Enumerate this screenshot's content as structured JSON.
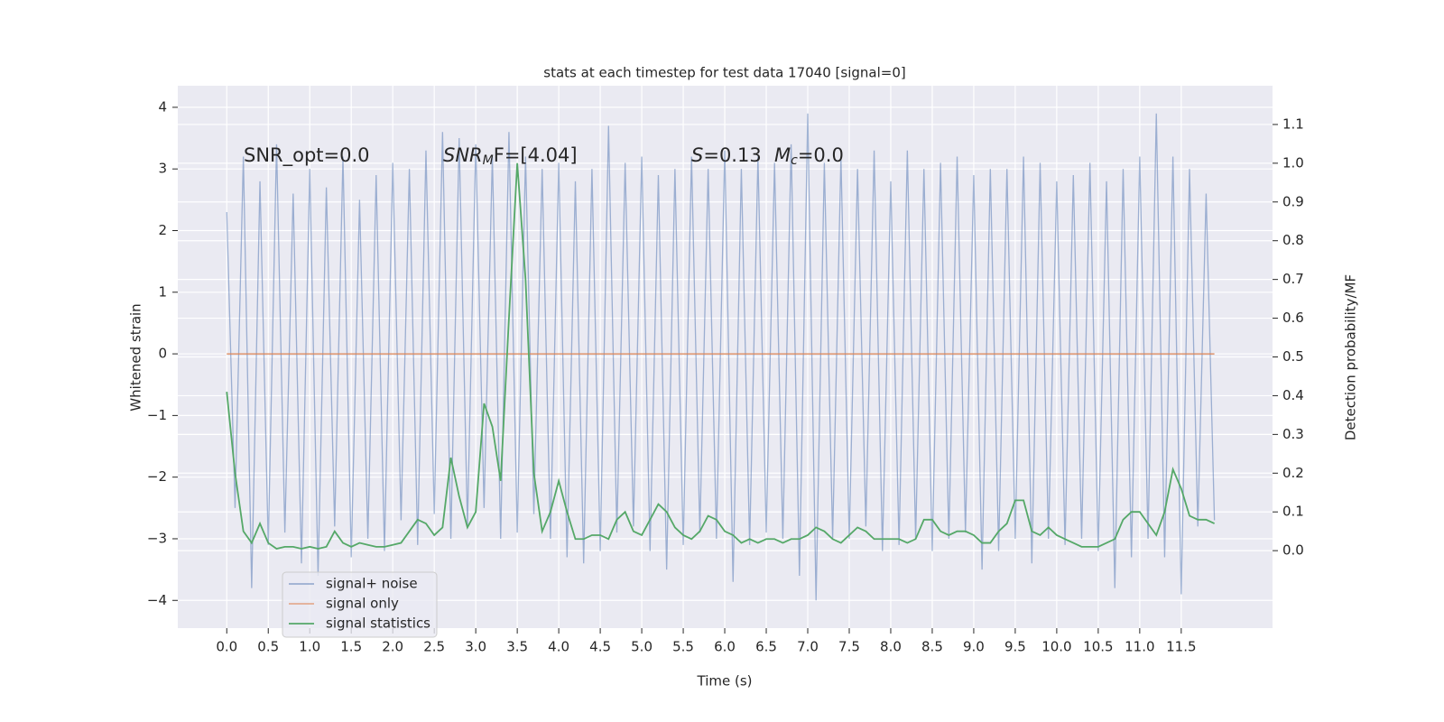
{
  "chart_data": {
    "type": "line",
    "title": "stats at each timestep for test data 17040 [signal=0]",
    "x_label": "Time (s)",
    "y_label": "Whitened strain",
    "y2_label": "Detection probability/MF",
    "annotations": [
      [
        "SNR_opt=0.0"
      ],
      [
        "SNR",
        "M",
        "F=[4.04]"
      ],
      [
        "S",
        "=0.13"
      ],
      [
        "M",
        "c",
        "=0.0"
      ]
    ],
    "legend": "lower left",
    "grid": true,
    "xlim": [
      -0.59,
      12.6
    ],
    "ylim": [
      -4.45,
      4.35
    ],
    "y2lim": [
      -0.2,
      1.2
    ],
    "xticks": [
      {
        "value": 0,
        "label": "0.0"
      },
      0.5,
      {
        "value": 1,
        "label": "1.0"
      },
      1.5,
      {
        "value": 2,
        "label": "2.0"
      },
      2.5,
      {
        "value": 3,
        "label": "3.0"
      },
      3.5,
      {
        "value": 4,
        "label": "4.0"
      },
      4.5,
      {
        "value": 5,
        "label": "5.0"
      },
      5.5,
      {
        "value": 6,
        "label": "6.0"
      },
      6.5,
      {
        "value": 7,
        "label": "7.0"
      },
      7.5,
      {
        "value": 8,
        "label": "8.0"
      },
      8.5,
      {
        "value": 9,
        "label": "9.0"
      },
      9.5,
      {
        "value": 10,
        "label": "10.0"
      },
      10.5,
      {
        "value": 11,
        "label": "11.0"
      },
      11.5
    ],
    "yticks": [
      {
        "value": -4,
        "label": "−4"
      },
      {
        "value": -3,
        "label": "−3"
      },
      {
        "value": -2,
        "label": "−2"
      },
      {
        "value": -1,
        "label": "−1"
      },
      0,
      1,
      2,
      3,
      4
    ],
    "y2ticks": [
      {
        "value": 0,
        "label": "0.0"
      },
      0.1,
      0.2,
      0.3,
      0.4,
      0.5,
      0.6,
      0.7,
      0.8,
      0.9,
      {
        "value": 1,
        "label": "1.0"
      },
      1.1
    ],
    "x": [
      0,
      0.1,
      0.2,
      0.3,
      0.4,
      0.5,
      0.6,
      0.7,
      0.8,
      0.9,
      1,
      1.1,
      1.2,
      1.3,
      1.4,
      1.5,
      1.6,
      1.7,
      1.8,
      1.9,
      2,
      2.1,
      2.2,
      2.3,
      2.4,
      2.5,
      2.6,
      2.7,
      2.8,
      2.9,
      3,
      3.1,
      3.2,
      3.3,
      3.4,
      3.5,
      3.6,
      3.7,
      3.8,
      3.9,
      4,
      4.1,
      4.2,
      4.3,
      4.4,
      4.5,
      4.6,
      4.7,
      4.8,
      4.9,
      5,
      5.1,
      5.2,
      5.3,
      5.4,
      5.5,
      5.6,
      5.7,
      5.8,
      5.9,
      6,
      6.1,
      6.2,
      6.3,
      6.4,
      6.5,
      6.6,
      6.7,
      6.8,
      6.9,
      7,
      7.1,
      7.2,
      7.3,
      7.4,
      7.5,
      7.6,
      7.7,
      7.8,
      7.9,
      8,
      8.1,
      8.2,
      8.3,
      8.4,
      8.5,
      8.6,
      8.7,
      8.8,
      8.9,
      9,
      9.1,
      9.2,
      9.3,
      9.4,
      9.5,
      9.6,
      9.7,
      9.8,
      9.9,
      10,
      10.1,
      10.2,
      10.3,
      10.4,
      10.5,
      10.6,
      10.7,
      10.8,
      10.9,
      11,
      11.1,
      11.2,
      11.3,
      11.4,
      11.5,
      11.6,
      11.7,
      11.8,
      11.9
    ],
    "series": [
      {
        "name": "signal+ noise",
        "color": "#4c72b0",
        "axis": "y",
        "values": [
          2.3,
          -2.5,
          3.2,
          -3.8,
          2.8,
          -3.1,
          3.4,
          -2.9,
          2.6,
          -3.4,
          3.0,
          -3.6,
          2.7,
          -2.8,
          3.2,
          -3.3,
          2.5,
          -3.0,
          2.9,
          -3.2,
          3.1,
          -2.7,
          3.0,
          -3.1,
          3.3,
          -2.6,
          3.6,
          -3.0,
          3.5,
          -2.8,
          3.4,
          -2.5,
          3.2,
          -3.0,
          3.6,
          -2.9,
          3.2,
          -2.6,
          3.0,
          -3.0,
          3.1,
          -3.3,
          2.8,
          -3.4,
          3.0,
          -3.2,
          3.7,
          -2.9,
          3.1,
          -2.8,
          3.2,
          -3.2,
          2.9,
          -3.5,
          3.0,
          -3.1,
          3.2,
          -2.9,
          3.0,
          -3.0,
          3.3,
          -3.7,
          3.0,
          -3.1,
          3.2,
          -2.9,
          3.1,
          -3.0,
          3.4,
          -3.6,
          3.9,
          -4.0,
          3.1,
          -3.0,
          3.2,
          -3.0,
          3.0,
          -2.8,
          3.3,
          -3.2,
          2.8,
          -3.1,
          3.3,
          -3.0,
          3.0,
          -3.2,
          3.1,
          -3.0,
          3.2,
          -2.9,
          2.9,
          -3.5,
          3.0,
          -3.2,
          3.0,
          -3.0,
          3.2,
          -3.4,
          3.1,
          -3.0,
          2.8,
          -3.1,
          2.9,
          -3.0,
          3.1,
          -3.2,
          2.8,
          -3.8,
          3.0,
          -3.3,
          3.2,
          -3.0,
          3.9,
          -3.3,
          3.2,
          -3.9,
          3.0,
          -2.8,
          2.6,
          -2.7
        ]
      },
      {
        "name": "signal only",
        "color": "#dd8452",
        "axis": "y",
        "values": [
          0,
          0,
          0,
          0,
          0,
          0,
          0,
          0,
          0,
          0,
          0,
          0,
          0,
          0,
          0,
          0,
          0,
          0,
          0,
          0,
          0,
          0,
          0,
          0,
          0,
          0,
          0,
          0,
          0,
          0,
          0,
          0,
          0,
          0,
          0,
          0,
          0,
          0,
          0,
          0,
          0,
          0,
          0,
          0,
          0,
          0,
          0,
          0,
          0,
          0,
          0,
          0,
          0,
          0,
          0,
          0,
          0,
          0,
          0,
          0,
          0,
          0,
          0,
          0,
          0,
          0,
          0,
          0,
          0,
          0,
          0,
          0,
          0,
          0,
          0,
          0,
          0,
          0,
          0,
          0,
          0,
          0,
          0,
          0,
          0,
          0,
          0,
          0,
          0,
          0,
          0,
          0,
          0,
          0,
          0,
          0,
          0,
          0,
          0,
          0,
          0,
          0,
          0,
          0,
          0,
          0,
          0,
          0,
          0,
          0,
          0,
          0,
          0,
          0,
          0,
          0,
          0,
          0,
          0,
          0
        ]
      },
      {
        "name": "signal statistics",
        "color": "#55a868",
        "axis": "y2",
        "values": [
          0.41,
          0.2,
          0.05,
          0.02,
          0.07,
          0.02,
          0.005,
          0.01,
          0.01,
          0.005,
          0.01,
          0.005,
          0.01,
          0.05,
          0.02,
          0.01,
          0.02,
          0.015,
          0.01,
          0.01,
          0.015,
          0.02,
          0.05,
          0.08,
          0.07,
          0.04,
          0.06,
          0.24,
          0.14,
          0.06,
          0.1,
          0.38,
          0.32,
          0.18,
          0.6,
          1.0,
          0.7,
          0.2,
          0.05,
          0.1,
          0.18,
          0.1,
          0.03,
          0.03,
          0.04,
          0.04,
          0.03,
          0.08,
          0.1,
          0.05,
          0.04,
          0.08,
          0.12,
          0.1,
          0.06,
          0.04,
          0.03,
          0.05,
          0.09,
          0.08,
          0.05,
          0.04,
          0.02,
          0.03,
          0.02,
          0.03,
          0.03,
          0.02,
          0.03,
          0.03,
          0.04,
          0.06,
          0.05,
          0.03,
          0.02,
          0.04,
          0.06,
          0.05,
          0.03,
          0.03,
          0.03,
          0.03,
          0.02,
          0.03,
          0.08,
          0.08,
          0.05,
          0.04,
          0.05,
          0.05,
          0.04,
          0.02,
          0.02,
          0.05,
          0.07,
          0.13,
          0.13,
          0.05,
          0.04,
          0.06,
          0.04,
          0.03,
          0.02,
          0.01,
          0.01,
          0.01,
          0.02,
          0.03,
          0.08,
          0.1,
          0.1,
          0.07,
          0.04,
          0.1,
          0.21,
          0.16,
          0.09,
          0.08,
          0.08,
          0.07
        ]
      }
    ]
  }
}
